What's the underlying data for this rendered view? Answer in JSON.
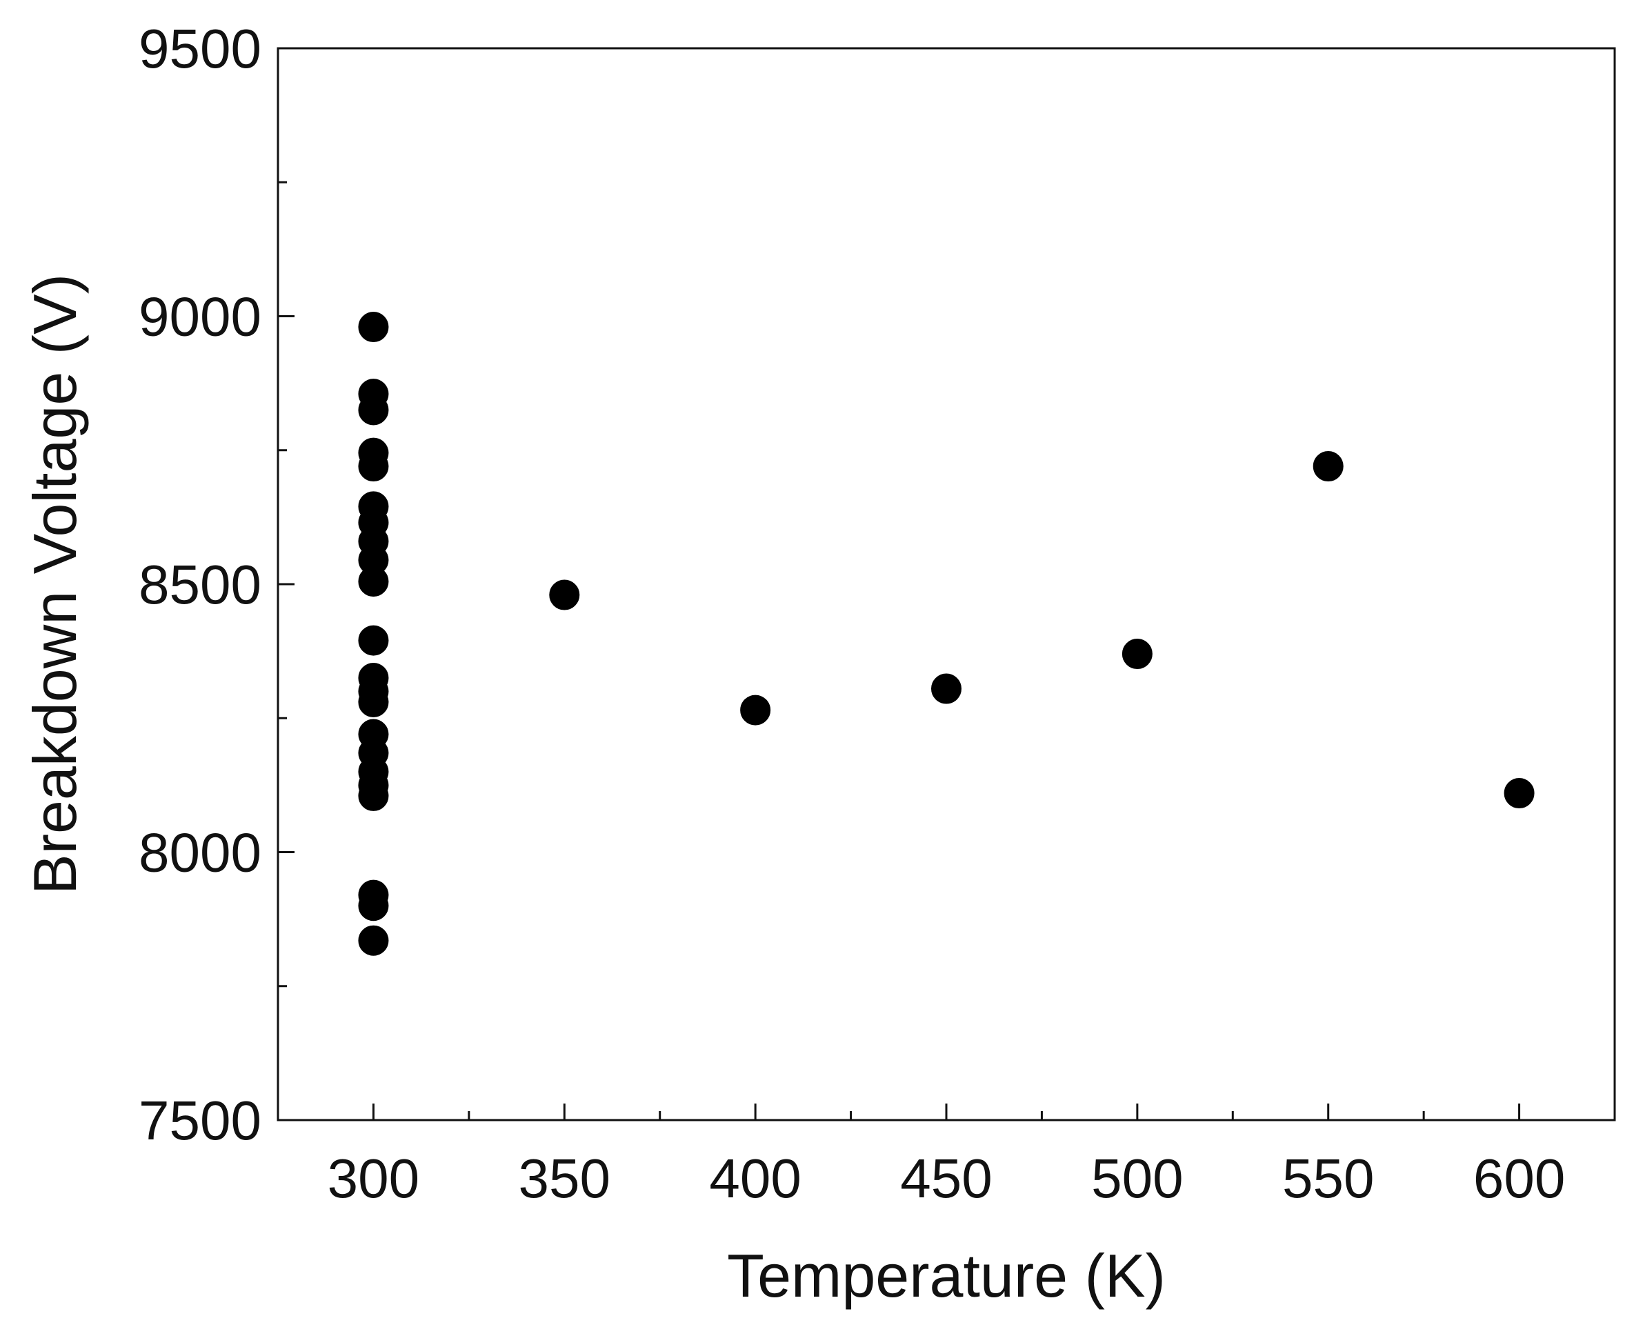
{
  "chart_data": {
    "type": "scatter",
    "title": "",
    "xlabel": "Temperature (K)",
    "ylabel": "Breakdown Voltage (V)",
    "xlim": [
      275,
      625
    ],
    "ylim": [
      7500,
      9500
    ],
    "x_ticks": [
      "300",
      "350",
      "400",
      "450",
      "500",
      "550",
      "600"
    ],
    "y_ticks": [
      "7500",
      "8000",
      "8500",
      "9000",
      "9500"
    ],
    "x_minor_ticks": [
      325,
      375,
      425,
      475,
      525,
      575
    ],
    "y_minor_ticks": [
      7750,
      8250,
      8750,
      9250
    ],
    "grid": false,
    "legend": "none",
    "marker": "filled-circle",
    "marker_color": "#000000",
    "series": [
      {
        "points": [
          {
            "x": 300,
            "y": 8980
          },
          {
            "x": 300,
            "y": 8855
          },
          {
            "x": 300,
            "y": 8825
          },
          {
            "x": 300,
            "y": 8745
          },
          {
            "x": 300,
            "y": 8720
          },
          {
            "x": 300,
            "y": 8645
          },
          {
            "x": 300,
            "y": 8615
          },
          {
            "x": 300,
            "y": 8580
          },
          {
            "x": 300,
            "y": 8545
          },
          {
            "x": 300,
            "y": 8505
          },
          {
            "x": 300,
            "y": 8395
          },
          {
            "x": 300,
            "y": 8325
          },
          {
            "x": 300,
            "y": 8300
          },
          {
            "x": 300,
            "y": 8280
          },
          {
            "x": 300,
            "y": 8220
          },
          {
            "x": 300,
            "y": 8185
          },
          {
            "x": 300,
            "y": 8150
          },
          {
            "x": 300,
            "y": 8125
          },
          {
            "x": 300,
            "y": 8105
          },
          {
            "x": 300,
            "y": 7920
          },
          {
            "x": 300,
            "y": 7900
          },
          {
            "x": 300,
            "y": 7835
          },
          {
            "x": 350,
            "y": 8480
          },
          {
            "x": 400,
            "y": 8265
          },
          {
            "x": 450,
            "y": 8305
          },
          {
            "x": 500,
            "y": 8370
          },
          {
            "x": 550,
            "y": 8720
          },
          {
            "x": 600,
            "y": 8110
          }
        ]
      }
    ]
  }
}
